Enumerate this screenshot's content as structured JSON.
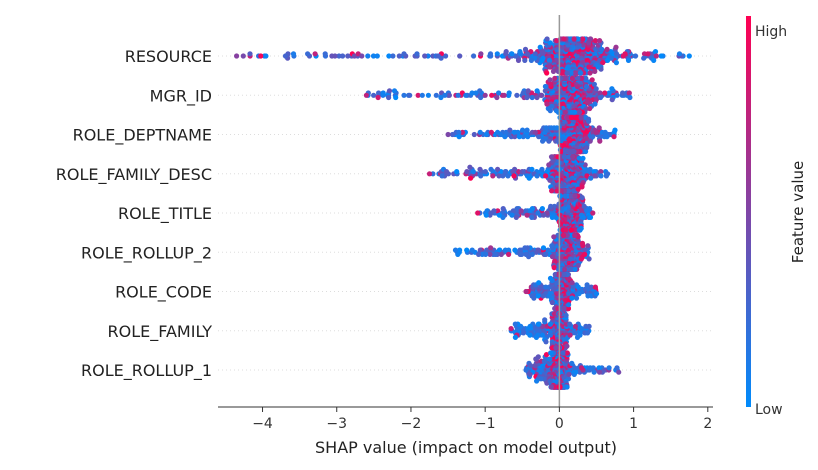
{
  "chart_data": {
    "type": "scatter",
    "subtype": "shap-beeswarm",
    "xlabel": "SHAP value (impact on model output)",
    "xlim": [
      -4.6,
      2.07
    ],
    "xticks": [
      -4,
      -3,
      -2,
      -1,
      0,
      1,
      2
    ],
    "xtick_labels": [
      "−4",
      "−3",
      "−2",
      "−1",
      "0",
      "1",
      "2"
    ],
    "grid": false,
    "features": [
      {
        "name": "RESOURCE",
        "min": -4.35,
        "max": 1.75,
        "mode": 0.2
      },
      {
        "name": "MGR_ID",
        "min": -2.6,
        "max": 0.95,
        "mode": 0.15
      },
      {
        "name": "ROLE_DEPTNAME",
        "min": -1.5,
        "max": 0.75,
        "mode": 0.2
      },
      {
        "name": "ROLE_FAMILY_DESC",
        "min": -1.75,
        "max": 0.65,
        "mode": 0.1
      },
      {
        "name": "ROLE_TITLE",
        "min": -1.1,
        "max": 0.45,
        "mode": 0.15
      },
      {
        "name": "ROLE_ROLLUP_2",
        "min": -1.4,
        "max": 0.4,
        "mode": 0.1
      },
      {
        "name": "ROLE_CODE",
        "min": -0.45,
        "max": 0.5,
        "mode": 0.05
      },
      {
        "name": "ROLE_FAMILY",
        "min": -0.65,
        "max": 0.4,
        "mode": 0.0
      },
      {
        "name": "ROLE_ROLLUP_1",
        "min": -0.45,
        "max": 0.8,
        "mode": 0.0
      }
    ],
    "colorbar": {
      "label": "Feature value",
      "high_label": "High",
      "low_label": "Low",
      "high_color": "#ff0052",
      "low_color": "#008bfb"
    }
  }
}
